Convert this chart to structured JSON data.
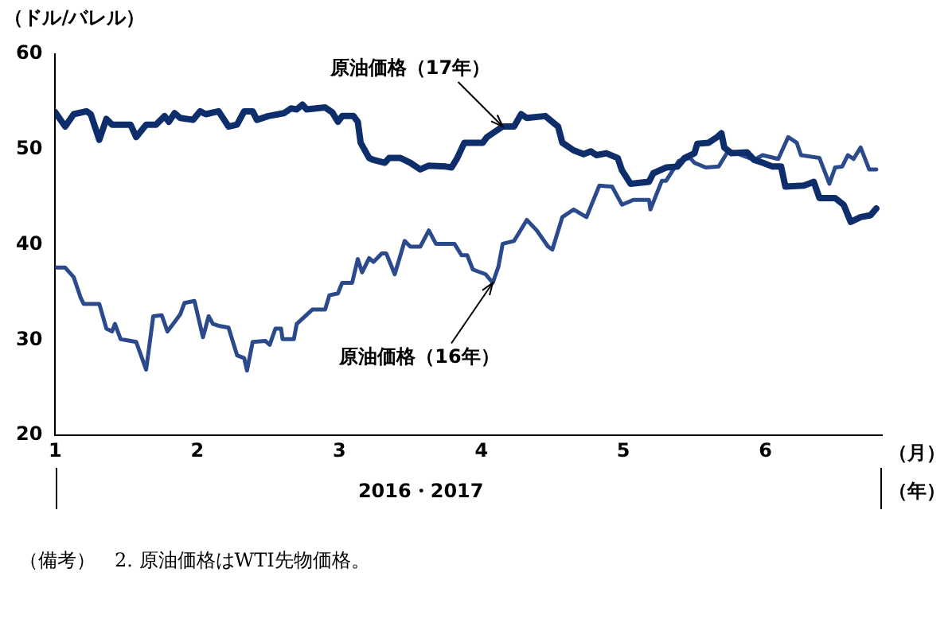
{
  "chart_data": {
    "type": "line",
    "ylabel": "（ドル/バレル）",
    "xlabel": "2016・2017",
    "xlim": [
      1,
      6.82
    ],
    "xticks": [
      1,
      2,
      3,
      4,
      5,
      6
    ],
    "ylim": [
      20,
      60
    ],
    "yticks": [
      20,
      30,
      40,
      50,
      60
    ],
    "grid": false,
    "legend": false,
    "marker": "none",
    "line_style": "solid",
    "series": [
      {
        "color": "#0d2d6b",
        "x": [
          1.0,
          1.07,
          1.13,
          1.22,
          1.25,
          1.31,
          1.36,
          1.4,
          1.53,
          1.57,
          1.64,
          1.71,
          1.77,
          1.8,
          1.84,
          1.88,
          1.97,
          2.02,
          2.06,
          2.15,
          2.22,
          2.28,
          2.33,
          2.39,
          2.42,
          2.5,
          2.61,
          2.66,
          2.7,
          2.74,
          2.77,
          2.9,
          2.95,
          2.99,
          3.02,
          3.1,
          3.13,
          3.15,
          3.21,
          3.24,
          3.32,
          3.35,
          3.43,
          3.5,
          3.57,
          3.63,
          3.75,
          3.79,
          3.83,
          3.88,
          3.9,
          4.01,
          4.04,
          4.15,
          4.23,
          4.28,
          4.32,
          4.45,
          4.54,
          4.57,
          4.65,
          4.72,
          4.77,
          4.81,
          4.88,
          4.96,
          4.99,
          5.05,
          5.18,
          5.21,
          5.3,
          5.38,
          5.43,
          5.5,
          5.52,
          5.6,
          5.66,
          5.69,
          5.71,
          5.76,
          5.87,
          5.92,
          5.98,
          6.05,
          6.11,
          6.14,
          6.27,
          6.34,
          6.38,
          6.49,
          6.55,
          6.6,
          6.67,
          6.74,
          6.78
        ],
        "values": [
          53.9,
          52.4,
          53.7,
          54.0,
          53.7,
          51.0,
          53.2,
          52.6,
          52.6,
          51.3,
          52.6,
          52.6,
          53.5,
          52.9,
          53.8,
          53.3,
          53.1,
          54.0,
          53.7,
          54.0,
          52.4,
          52.6,
          54.0,
          54.0,
          53.1,
          53.5,
          53.8,
          54.3,
          54.2,
          54.7,
          54.2,
          54.4,
          53.9,
          52.9,
          53.5,
          53.5,
          52.9,
          50.7,
          49.1,
          48.9,
          48.6,
          49.1,
          49.1,
          48.6,
          47.9,
          48.3,
          48.2,
          48.1,
          49.1,
          50.7,
          50.7,
          50.7,
          51.3,
          52.4,
          52.4,
          53.7,
          53.3,
          53.5,
          52.4,
          50.7,
          49.9,
          49.5,
          49.8,
          49.4,
          49.6,
          49.1,
          47.8,
          46.4,
          46.6,
          47.5,
          48.1,
          48.2,
          49.1,
          49.6,
          50.6,
          50.7,
          51.3,
          51.7,
          50.2,
          49.6,
          49.7,
          48.9,
          48.6,
          48.2,
          48.2,
          46.1,
          46.2,
          46.6,
          44.9,
          44.9,
          44.2,
          42.4,
          42.9,
          43.1,
          43.8
        ]
      },
      {
        "color": "#2a4a8c",
        "x": [
          1.0,
          1.07,
          1.13,
          1.18,
          1.2,
          1.31,
          1.36,
          1.4,
          1.42,
          1.46,
          1.57,
          1.64,
          1.69,
          1.75,
          1.79,
          1.84,
          1.88,
          1.91,
          1.98,
          2.04,
          2.08,
          2.11,
          2.15,
          2.22,
          2.28,
          2.33,
          2.35,
          2.39,
          2.48,
          2.51,
          2.55,
          2.59,
          2.6,
          2.68,
          2.7,
          2.81,
          2.9,
          2.93,
          2.99,
          3.02,
          3.09,
          3.13,
          3.16,
          3.21,
          3.24,
          3.3,
          3.33,
          3.39,
          3.46,
          3.5,
          3.57,
          3.63,
          3.68,
          3.81,
          3.86,
          3.9,
          3.94,
          4.03,
          4.08,
          4.12,
          4.15,
          4.23,
          4.32,
          4.39,
          4.47,
          4.5,
          4.57,
          4.65,
          4.74,
          4.83,
          4.92,
          4.99,
          5.07,
          5.18,
          5.19,
          5.27,
          5.3,
          5.39,
          5.47,
          5.5,
          5.58,
          5.67,
          5.74,
          5.83,
          5.92,
          5.98,
          6.09,
          6.16,
          6.22,
          6.25,
          6.38,
          6.45,
          6.49,
          6.54,
          6.58,
          6.62,
          6.67,
          6.73,
          6.78
        ],
        "values": [
          37.6,
          37.6,
          36.6,
          34.4,
          33.8,
          33.8,
          31.2,
          30.9,
          31.7,
          30.1,
          29.8,
          26.9,
          32.5,
          32.6,
          30.9,
          31.9,
          32.7,
          33.9,
          34.1,
          30.3,
          32.5,
          31.7,
          31.5,
          31.3,
          28.4,
          28.1,
          26.8,
          29.8,
          29.9,
          29.5,
          31.2,
          31.2,
          30.1,
          30.1,
          31.7,
          33.2,
          33.2,
          34.7,
          34.9,
          36.0,
          36.0,
          38.5,
          37.1,
          38.6,
          38.2,
          39.1,
          39.1,
          36.9,
          40.4,
          39.8,
          39.8,
          41.5,
          40.1,
          40.1,
          38.9,
          38.9,
          37.4,
          36.9,
          36.0,
          37.7,
          40.1,
          40.4,
          42.6,
          41.5,
          39.8,
          39.5,
          42.9,
          43.7,
          42.9,
          46.2,
          46.1,
          44.2,
          44.7,
          44.7,
          43.7,
          46.7,
          46.7,
          48.8,
          49.1,
          48.6,
          48.1,
          48.2,
          49.9,
          49.4,
          48.9,
          49.4,
          49.0,
          51.3,
          50.7,
          49.4,
          49.1,
          46.4,
          48.1,
          48.2,
          49.4,
          49.0,
          50.2,
          47.9,
          47.9
        ]
      }
    ],
    "annotations": [
      {
        "text": "原油価格（17年）",
        "x": 4.15,
        "y": 52.4
      },
      {
        "text": "原油価格（16年）",
        "x": 4.08,
        "y": 36.0
      },
      "（月）",
      "（年）",
      "（備考）",
      "2. 原油価格はWTI先物価格。"
    ]
  }
}
